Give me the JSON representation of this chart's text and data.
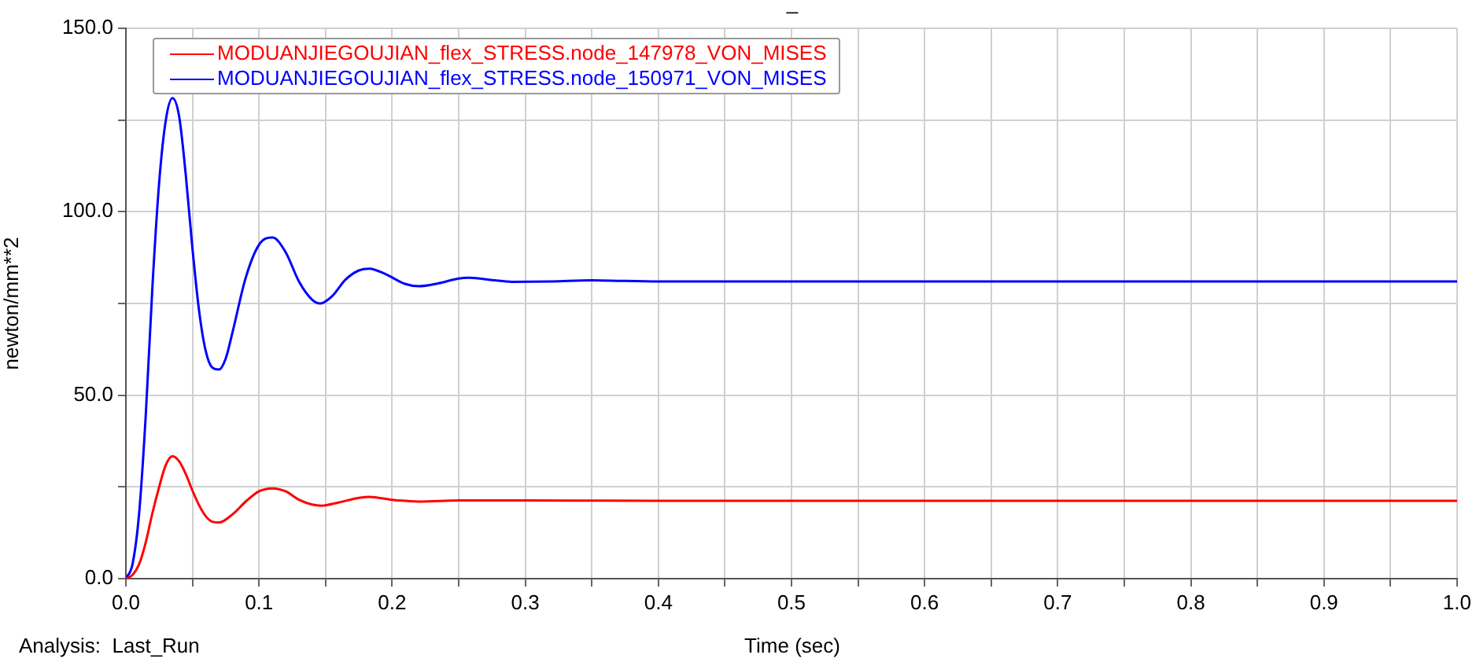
{
  "chart_data": {
    "type": "line",
    "title": "_",
    "xlabel": "Time (sec)",
    "ylabel": "newton/mm**2",
    "annotations": [
      "Analysis:  Last_Run"
    ],
    "xlim": [
      0,
      1
    ],
    "ylim": [
      0,
      150
    ],
    "xticks": [
      {
        "value": 0,
        "label": "0.0"
      },
      {
        "value": 0.05,
        "label": null
      },
      0.1,
      {
        "value": 0.15,
        "label": null
      },
      0.2,
      {
        "value": 0.25,
        "label": null
      },
      0.3,
      {
        "value": 0.35,
        "label": null
      },
      0.4,
      {
        "value": 0.45,
        "label": null
      },
      0.5,
      {
        "value": 0.55,
        "label": null
      },
      0.6,
      {
        "value": 0.65,
        "label": null
      },
      0.7,
      {
        "value": 0.75,
        "label": null
      },
      0.8,
      {
        "value": 0.85,
        "label": null
      },
      0.9,
      {
        "value": 0.95,
        "label": null
      },
      {
        "value": 1,
        "label": "1.0"
      }
    ],
    "yticks": [
      {
        "value": 0,
        "label": "0.0"
      },
      {
        "value": 25,
        "label": null
      },
      {
        "value": 50,
        "label": "50.0"
      },
      {
        "value": 75,
        "label": null
      },
      {
        "value": 100,
        "label": "100.0"
      },
      {
        "value": 125,
        "label": null
      },
      {
        "value": 150,
        "label": "150.0"
      }
    ],
    "grid": true,
    "legend": "top left",
    "marker": "none",
    "line_style": "solid",
    "series": [
      {
        "name": "MODUANJIEGOUJIAN_flex_STRESS.node_147978_VON_MISES",
        "color": "#ff0000",
        "x": [
          0,
          0.005,
          0.01,
          0.015,
          0.02,
          0.025,
          0.03,
          0.035,
          0.04,
          0.045,
          0.05,
          0.055,
          0.06,
          0.065,
          0.07,
          0.08,
          0.09,
          0.1,
          0.11,
          0.12,
          0.13,
          0.14,
          0.147,
          0.16,
          0.175,
          0.183,
          0.2,
          0.22,
          0.25,
          0.3,
          0.4,
          1.0
        ],
        "values": [
          0,
          1,
          4,
          10,
          18,
          25,
          31,
          33.4,
          32,
          28.5,
          24,
          20,
          17,
          15.5,
          15.3,
          17.5,
          21,
          23.8,
          24.6,
          23.8,
          21.5,
          20.2,
          19.9,
          20.8,
          22,
          22.3,
          21.5,
          21,
          21.3,
          21.3,
          21.2,
          21.2
        ]
      },
      {
        "name": "MODUANJIEGOUJIAN_flex_STRESS.node_150971_VON_MISES",
        "color": "#0000ff",
        "x": [
          0,
          0.005,
          0.01,
          0.015,
          0.02,
          0.025,
          0.03,
          0.035,
          0.04,
          0.045,
          0.05,
          0.055,
          0.06,
          0.065,
          0.07,
          0.075,
          0.08,
          0.09,
          0.1,
          0.11,
          0.12,
          0.13,
          0.14,
          0.146,
          0.155,
          0.165,
          0.175,
          0.183,
          0.195,
          0.21,
          0.22,
          0.235,
          0.25,
          0.258,
          0.275,
          0.29,
          0.32,
          0.35,
          0.4,
          1.0
        ],
        "values": [
          0,
          4,
          18,
          45,
          80,
          108,
          125,
          131,
          126,
          110,
          90,
          73,
          62,
          57.5,
          57,
          60,
          67,
          82,
          91,
          93,
          89,
          81,
          76,
          75,
          77,
          81.5,
          84,
          84.5,
          83,
          80.3,
          79.7,
          80.5,
          81.8,
          82,
          81.4,
          80.9,
          81,
          81.3,
          81,
          81
        ]
      }
    ]
  }
}
